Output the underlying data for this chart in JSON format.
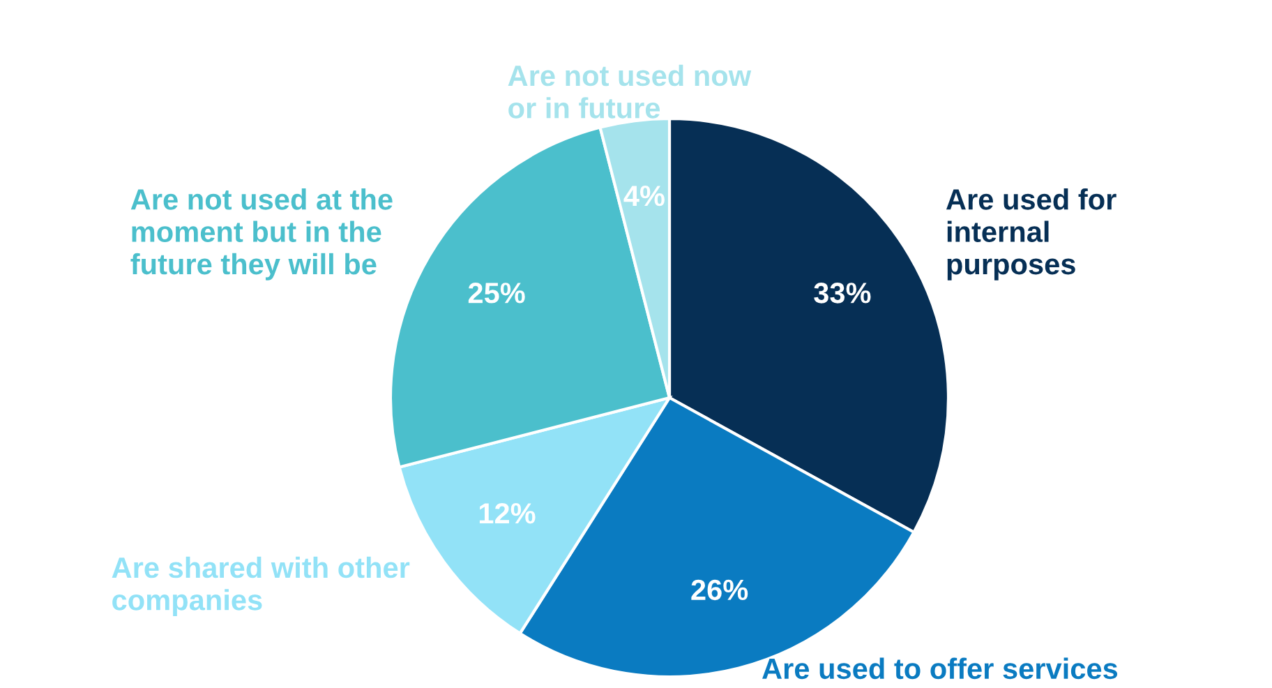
{
  "chart_data": {
    "type": "pie",
    "categories": [
      "Are used for\ninternal\npurposes",
      "Are used to offer services",
      "Are shared with other\ncompanies",
      "Are not used at the\nmoment but in the\nfuture they will be",
      "Are not used now\nor in future"
    ],
    "values": [
      33,
      26,
      12,
      25,
      4
    ],
    "colors": [
      "#062f55",
      "#0a7bc1",
      "#92e2f7",
      "#4bbfcc",
      "#a5e3ec"
    ],
    "value_labels": [
      "33%",
      "26%",
      "12%",
      "25%",
      "4%"
    ]
  }
}
